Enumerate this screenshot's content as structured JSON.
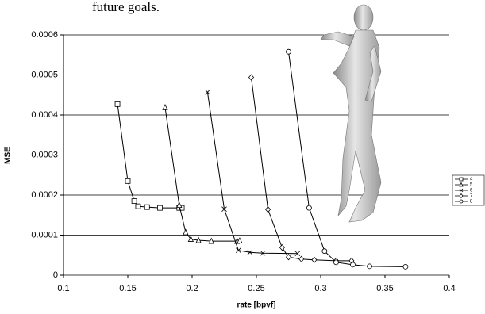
{
  "page_text": "future goals.",
  "chart_data": {
    "type": "line",
    "x_label": "rate [bpvf]",
    "y_label": "MSE",
    "xlim": [
      0.1,
      0.4
    ],
    "xticks": [
      0.1,
      0.15,
      0.2,
      0.25,
      0.3,
      0.35,
      0.4
    ],
    "ylim": [
      0,
      0.0006
    ],
    "yticks": [
      0,
      0.0001,
      0.0002,
      0.0003,
      0.0004,
      0.0005,
      0.0006
    ],
    "grid": true,
    "legend": "right",
    "series": [
      {
        "name": "4",
        "color": "#000000",
        "marker": "square",
        "x": [
          0.142,
          0.15,
          0.155,
          0.158,
          0.165,
          0.175,
          0.19,
          0.192
        ],
        "values": [
          0.000427,
          0.000235,
          0.000185,
          0.000172,
          0.00017,
          0.000168,
          0.000168,
          0.000168
        ]
      },
      {
        "name": "5",
        "color": "#000000",
        "marker": "triangle",
        "x": [
          0.179,
          0.19,
          0.195,
          0.199,
          0.205,
          0.215,
          0.235,
          0.237
        ],
        "values": [
          0.000419,
          0.000175,
          0.000107,
          9e-05,
          8.7e-05,
          8.5e-05,
          8.5e-05,
          8.6e-05
        ]
      },
      {
        "name": "6",
        "color": "#000000",
        "marker": "cross",
        "x": [
          0.212,
          0.225,
          0.236,
          0.245,
          0.255,
          0.282
        ],
        "values": [
          0.000457,
          0.000165,
          6.2e-05,
          5.7e-05,
          5.5e-05,
          5.4e-05
        ]
      },
      {
        "name": "7",
        "color": "#000000",
        "marker": "diamond",
        "x": [
          0.246,
          0.259,
          0.27,
          0.275,
          0.285,
          0.295,
          0.312,
          0.324
        ],
        "values": [
          0.000494,
          0.000164,
          6.9e-05,
          4.5e-05,
          4e-05,
          3.8e-05,
          3.6e-05,
          3.6e-05
        ]
      },
      {
        "name": "8",
        "color": "#000000",
        "marker": "circle",
        "x": [
          0.275,
          0.291,
          0.303,
          0.312,
          0.325,
          0.338,
          0.366
        ],
        "values": [
          0.000558,
          0.000168,
          6e-05,
          3.2e-05,
          2.6e-05,
          2.2e-05,
          2.1e-05
        ]
      }
    ]
  }
}
